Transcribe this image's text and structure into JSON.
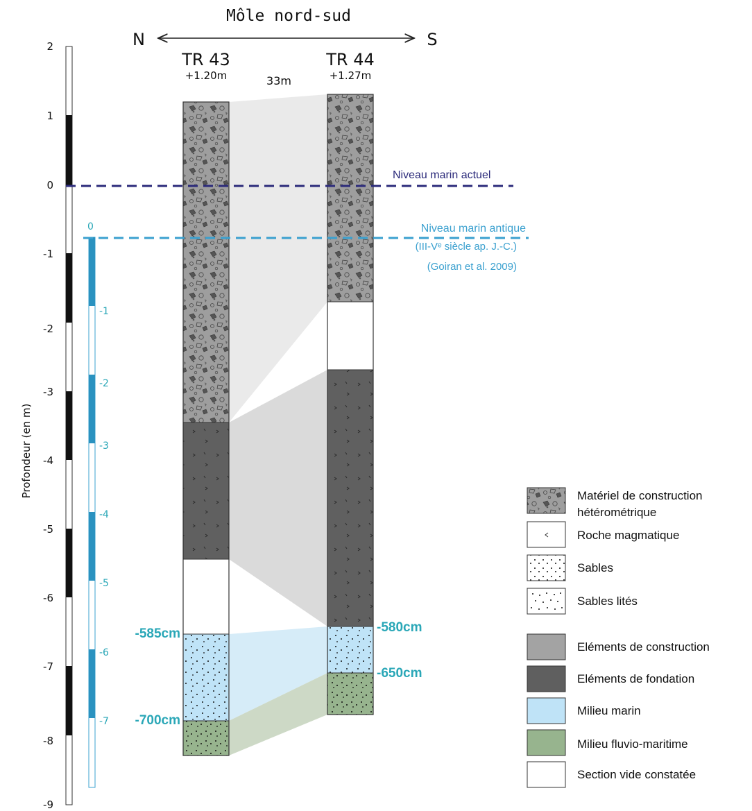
{
  "title": "Môle nord-sud",
  "direction": {
    "left": "N",
    "right": "S"
  },
  "distance_label": "33m",
  "axis": {
    "label": "Profondeur (en m)",
    "ticks": [
      "2",
      "1",
      "0",
      "-1",
      "-2",
      "-3",
      "-4",
      "-5",
      "-6",
      "-7",
      "-8",
      "-9"
    ]
  },
  "antique_scale": {
    "ticks": [
      "0",
      "-1",
      "-2",
      "-3",
      "-4",
      "-5",
      "-6",
      "-7"
    ]
  },
  "sea_levels": {
    "actuel": {
      "label": "Niveau marin actuel",
      "color": "#2b2a7a"
    },
    "antique": {
      "line1": "Niveau marin antique",
      "line2": "(III-Vᵉ siècle ap. J.-C.)",
      "line3": "(Goiran et al. 2009)",
      "color": "#3aa0cf"
    }
  },
  "cores": [
    {
      "name": "TR 43",
      "elevation": "+1.20m"
    },
    {
      "name": "TR 44",
      "elevation": "+1.27m"
    }
  ],
  "depth_labels": {
    "tr43_top": "-585cm",
    "tr43_bottom": "-700cm",
    "tr44_top": "-580cm",
    "tr44_bottom": "-650cm",
    "color": "#2aa7b7"
  },
  "legend": {
    "texture_items": [
      {
        "line1": "Matériel de construction",
        "line2": "hétérométrique",
        "icon": "rubble-texture-icon"
      },
      {
        "line1": "Roche magmatique",
        "line2": "",
        "icon": "magmatic-rock-icon"
      },
      {
        "line1": "Sables",
        "line2": "",
        "icon": "sand-icon"
      },
      {
        "line1": "Sables lités",
        "line2": "",
        "icon": "layered-sand-icon"
      }
    ],
    "color_items": [
      {
        "label": "Eléments de construction",
        "color": "#a3a3a3"
      },
      {
        "label": "Eléments de fondation",
        "color": "#5f5f5f"
      },
      {
        "label": "Milieu marin",
        "color": "#bfe3f7"
      },
      {
        "label": "Milieu fluvio-maritime",
        "color": "#97b48e"
      },
      {
        "label": "Section vide constatée",
        "color": "#ffffff"
      }
    ]
  }
}
